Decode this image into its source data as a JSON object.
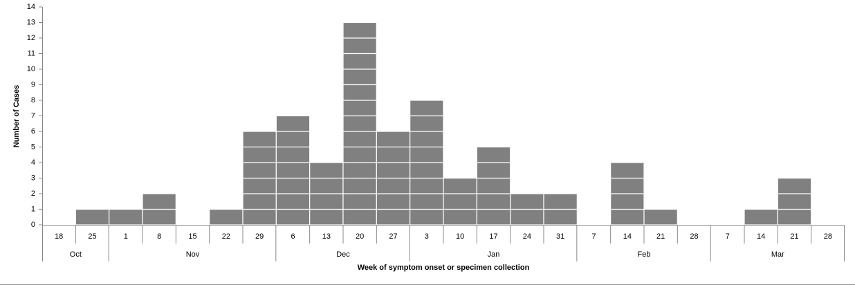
{
  "chart_data": {
    "type": "bar",
    "y_label": "Number of Cases",
    "x_label": "Week of symptom onset or specimen collection",
    "months": [
      {
        "label": "Oct",
        "weeks": [
          "18",
          "25"
        ]
      },
      {
        "label": "Nov",
        "weeks": [
          "1",
          "8",
          "15",
          "22",
          "29"
        ]
      },
      {
        "label": "Dec",
        "weeks": [
          "6",
          "13",
          "20",
          "27"
        ]
      },
      {
        "label": "Jan",
        "weeks": [
          "3",
          "10",
          "17",
          "24",
          "31"
        ]
      },
      {
        "label": "Feb",
        "weeks": [
          "7",
          "14",
          "21",
          "28"
        ]
      },
      {
        "label": "Mar",
        "weeks": [
          "7",
          "14",
          "21",
          "28"
        ]
      }
    ],
    "values": [
      0,
      1,
      1,
      2,
      0,
      1,
      6,
      7,
      4,
      13,
      6,
      8,
      3,
      5,
      2,
      2,
      0,
      4,
      1,
      0,
      0,
      1,
      3,
      0
    ],
    "color": "#808080",
    "ylim": [
      0,
      14
    ],
    "yticks": [
      0,
      1,
      2,
      3,
      4,
      5,
      6,
      7,
      8,
      9,
      10,
      11,
      12,
      13,
      14
    ],
    "grid": false
  }
}
